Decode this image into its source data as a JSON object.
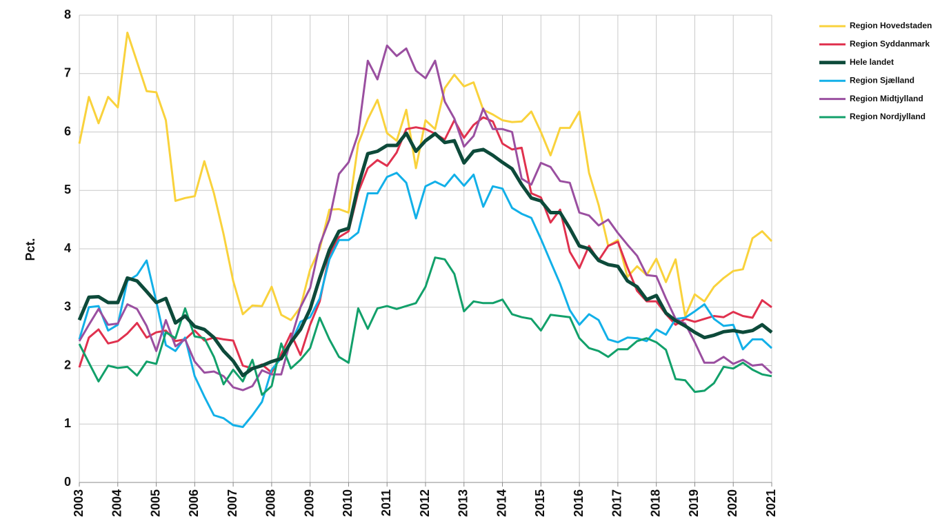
{
  "chart_data": {
    "type": "line",
    "y_label": "Pct.",
    "x": [
      2003,
      2003.25,
      2003.5,
      2003.75,
      2004,
      2004.25,
      2004.5,
      2004.75,
      2005,
      2005.25,
      2005.5,
      2005.75,
      2006,
      2006.25,
      2006.5,
      2006.75,
      2007,
      2007.25,
      2007.5,
      2007.75,
      2008,
      2008.25,
      2008.5,
      2008.75,
      2009,
      2009.25,
      2009.5,
      2009.75,
      2010,
      2010.25,
      2010.5,
      2010.75,
      2011,
      2011.25,
      2011.5,
      2011.75,
      2012,
      2012.25,
      2012.5,
      2012.75,
      2013,
      2013.25,
      2013.5,
      2013.75,
      2014,
      2014.25,
      2014.5,
      2014.75,
      2015,
      2015.25,
      2015.5,
      2015.75,
      2016,
      2016.25,
      2016.5,
      2016.75,
      2017,
      2017.25,
      2017.5,
      2017.75,
      2018,
      2018.25,
      2018.5,
      2018.75,
      2019,
      2019.25,
      2019.5,
      2019.75,
      2020,
      2020.25,
      2020.5,
      2020.75,
      2021
    ],
    "xlim": [
      2003,
      2021
    ],
    "xticks": [
      2003,
      2004,
      2005,
      2006,
      2007,
      2008,
      2009,
      2010,
      2011,
      2012,
      2013,
      2014,
      2015,
      2016,
      2017,
      2018,
      2019,
      2020,
      2021
    ],
    "ylim": [
      0,
      8
    ],
    "yticks": [
      0,
      1,
      2,
      3,
      4,
      5,
      6,
      7,
      8
    ],
    "grid": true,
    "legend": "right",
    "series": [
      {
        "name": "Region Hovedstaden",
        "color": "#f9d23c",
        "values": [
          5.8,
          6.6,
          6.15,
          6.6,
          6.42,
          7.7,
          7.2,
          6.7,
          6.68,
          6.2,
          4.82,
          4.87,
          4.9,
          5.5,
          4.95,
          4.25,
          3.45,
          2.88,
          3.03,
          3.02,
          3.35,
          2.87,
          2.78,
          3.0,
          3.65,
          4.0,
          4.67,
          4.68,
          4.62,
          5.8,
          6.22,
          6.55,
          5.98,
          5.85,
          6.38,
          5.38,
          6.2,
          6.05,
          6.75,
          6.98,
          6.78,
          6.85,
          6.38,
          6.3,
          6.2,
          6.17,
          6.18,
          6.35,
          6.0,
          5.6,
          6.07,
          6.07,
          6.35,
          5.3,
          4.75,
          4.05,
          4.15,
          3.52,
          3.7,
          3.55,
          3.83,
          3.43,
          3.82,
          2.85,
          3.22,
          3.1,
          3.35,
          3.5,
          3.62,
          3.65,
          4.18,
          4.3,
          4.13
        ]
      },
      {
        "name": "Region Syddanmark",
        "color": "#e0314e",
        "values": [
          1.97,
          2.48,
          2.62,
          2.38,
          2.42,
          2.55,
          2.73,
          2.48,
          2.57,
          2.6,
          2.42,
          2.45,
          2.6,
          2.43,
          2.48,
          2.45,
          2.43,
          2.0,
          1.95,
          2.02,
          1.88,
          2.2,
          2.55,
          2.18,
          2.7,
          3.1,
          3.9,
          4.2,
          4.3,
          4.97,
          5.38,
          5.52,
          5.42,
          5.65,
          6.05,
          6.08,
          6.05,
          5.97,
          5.87,
          6.2,
          5.9,
          6.12,
          6.25,
          6.18,
          5.8,
          5.7,
          5.73,
          4.95,
          4.88,
          4.45,
          4.67,
          3.95,
          3.67,
          4.05,
          3.8,
          4.05,
          4.12,
          3.68,
          3.28,
          3.1,
          3.1,
          2.88,
          2.7,
          2.8,
          2.75,
          2.8,
          2.85,
          2.83,
          2.92,
          2.85,
          2.82,
          3.12,
          3.0
        ]
      },
      {
        "name": "Hele landet",
        "color": "#0d4a3a",
        "emphasis": true,
        "values": [
          2.78,
          3.17,
          3.18,
          3.08,
          3.08,
          3.5,
          3.45,
          3.27,
          3.08,
          3.15,
          2.73,
          2.85,
          2.67,
          2.62,
          2.48,
          2.25,
          2.08,
          1.83,
          1.95,
          2.0,
          2.07,
          2.12,
          2.4,
          2.62,
          2.97,
          3.5,
          3.98,
          4.3,
          4.35,
          5.08,
          5.63,
          5.67,
          5.77,
          5.77,
          5.98,
          5.67,
          5.85,
          5.97,
          5.82,
          5.85,
          5.47,
          5.67,
          5.7,
          5.6,
          5.48,
          5.37,
          5.1,
          4.87,
          4.82,
          4.62,
          4.62,
          4.35,
          4.05,
          4.0,
          3.8,
          3.73,
          3.7,
          3.45,
          3.35,
          3.13,
          3.2,
          2.9,
          2.77,
          2.68,
          2.57,
          2.48,
          2.52,
          2.58,
          2.6,
          2.57,
          2.6,
          2.7,
          2.57
        ]
      },
      {
        "name": "Region Sjælland",
        "color": "#12b0e8",
        "values": [
          2.45,
          3.0,
          3.02,
          2.6,
          2.7,
          3.45,
          3.55,
          3.8,
          3.1,
          2.35,
          2.25,
          2.48,
          1.82,
          1.47,
          1.15,
          1.1,
          0.98,
          0.95,
          1.15,
          1.38,
          1.93,
          2.13,
          2.38,
          2.75,
          2.83,
          3.15,
          3.82,
          4.15,
          4.15,
          4.28,
          4.95,
          4.95,
          5.23,
          5.3,
          5.13,
          4.52,
          5.07,
          5.15,
          5.07,
          5.27,
          5.08,
          5.27,
          4.72,
          5.07,
          5.03,
          4.7,
          4.6,
          4.53,
          4.17,
          3.78,
          3.4,
          2.95,
          2.7,
          2.88,
          2.78,
          2.45,
          2.4,
          2.48,
          2.47,
          2.42,
          2.62,
          2.53,
          2.8,
          2.82,
          2.93,
          3.05,
          2.8,
          2.68,
          2.7,
          2.28,
          2.45,
          2.45,
          2.3
        ]
      },
      {
        "name": "Region Midtjylland",
        "color": "#9a4fa0",
        "values": [
          2.42,
          2.7,
          2.97,
          2.7,
          2.72,
          3.05,
          2.97,
          2.68,
          2.25,
          2.78,
          2.33,
          2.45,
          2.07,
          1.88,
          1.9,
          1.82,
          1.63,
          1.58,
          1.65,
          1.92,
          1.85,
          1.85,
          2.45,
          3.0,
          3.33,
          4.07,
          4.5,
          5.28,
          5.48,
          5.97,
          7.22,
          6.9,
          7.48,
          7.3,
          7.43,
          7.05,
          6.92,
          7.22,
          6.52,
          6.23,
          5.75,
          5.93,
          6.4,
          6.05,
          6.05,
          6.0,
          5.2,
          5.1,
          5.47,
          5.4,
          5.16,
          5.13,
          4.62,
          4.57,
          4.4,
          4.5,
          4.27,
          4.07,
          3.88,
          3.55,
          3.53,
          3.15,
          2.8,
          2.72,
          2.4,
          2.05,
          2.05,
          2.15,
          2.03,
          2.1,
          2.0,
          2.02,
          1.87
        ]
      },
      {
        "name": "Region Nordjylland",
        "color": "#12a06a",
        "values": [
          2.37,
          2.05,
          1.73,
          2.0,
          1.96,
          1.98,
          1.83,
          2.07,
          2.03,
          2.57,
          2.47,
          2.98,
          2.5,
          2.47,
          2.15,
          1.68,
          1.93,
          1.73,
          2.1,
          1.5,
          1.65,
          2.38,
          1.95,
          2.1,
          2.3,
          2.82,
          2.45,
          2.15,
          2.05,
          2.98,
          2.63,
          2.98,
          3.02,
          2.97,
          3.02,
          3.07,
          3.35,
          3.85,
          3.82,
          3.57,
          2.93,
          3.1,
          3.07,
          3.07,
          3.13,
          2.88,
          2.83,
          2.8,
          2.6,
          2.87,
          2.85,
          2.83,
          2.47,
          2.3,
          2.25,
          2.15,
          2.28,
          2.28,
          2.42,
          2.47,
          2.4,
          2.27,
          1.77,
          1.75,
          1.55,
          1.57,
          1.7,
          1.98,
          1.95,
          2.05,
          1.93,
          1.85,
          1.82
        ]
      }
    ]
  }
}
